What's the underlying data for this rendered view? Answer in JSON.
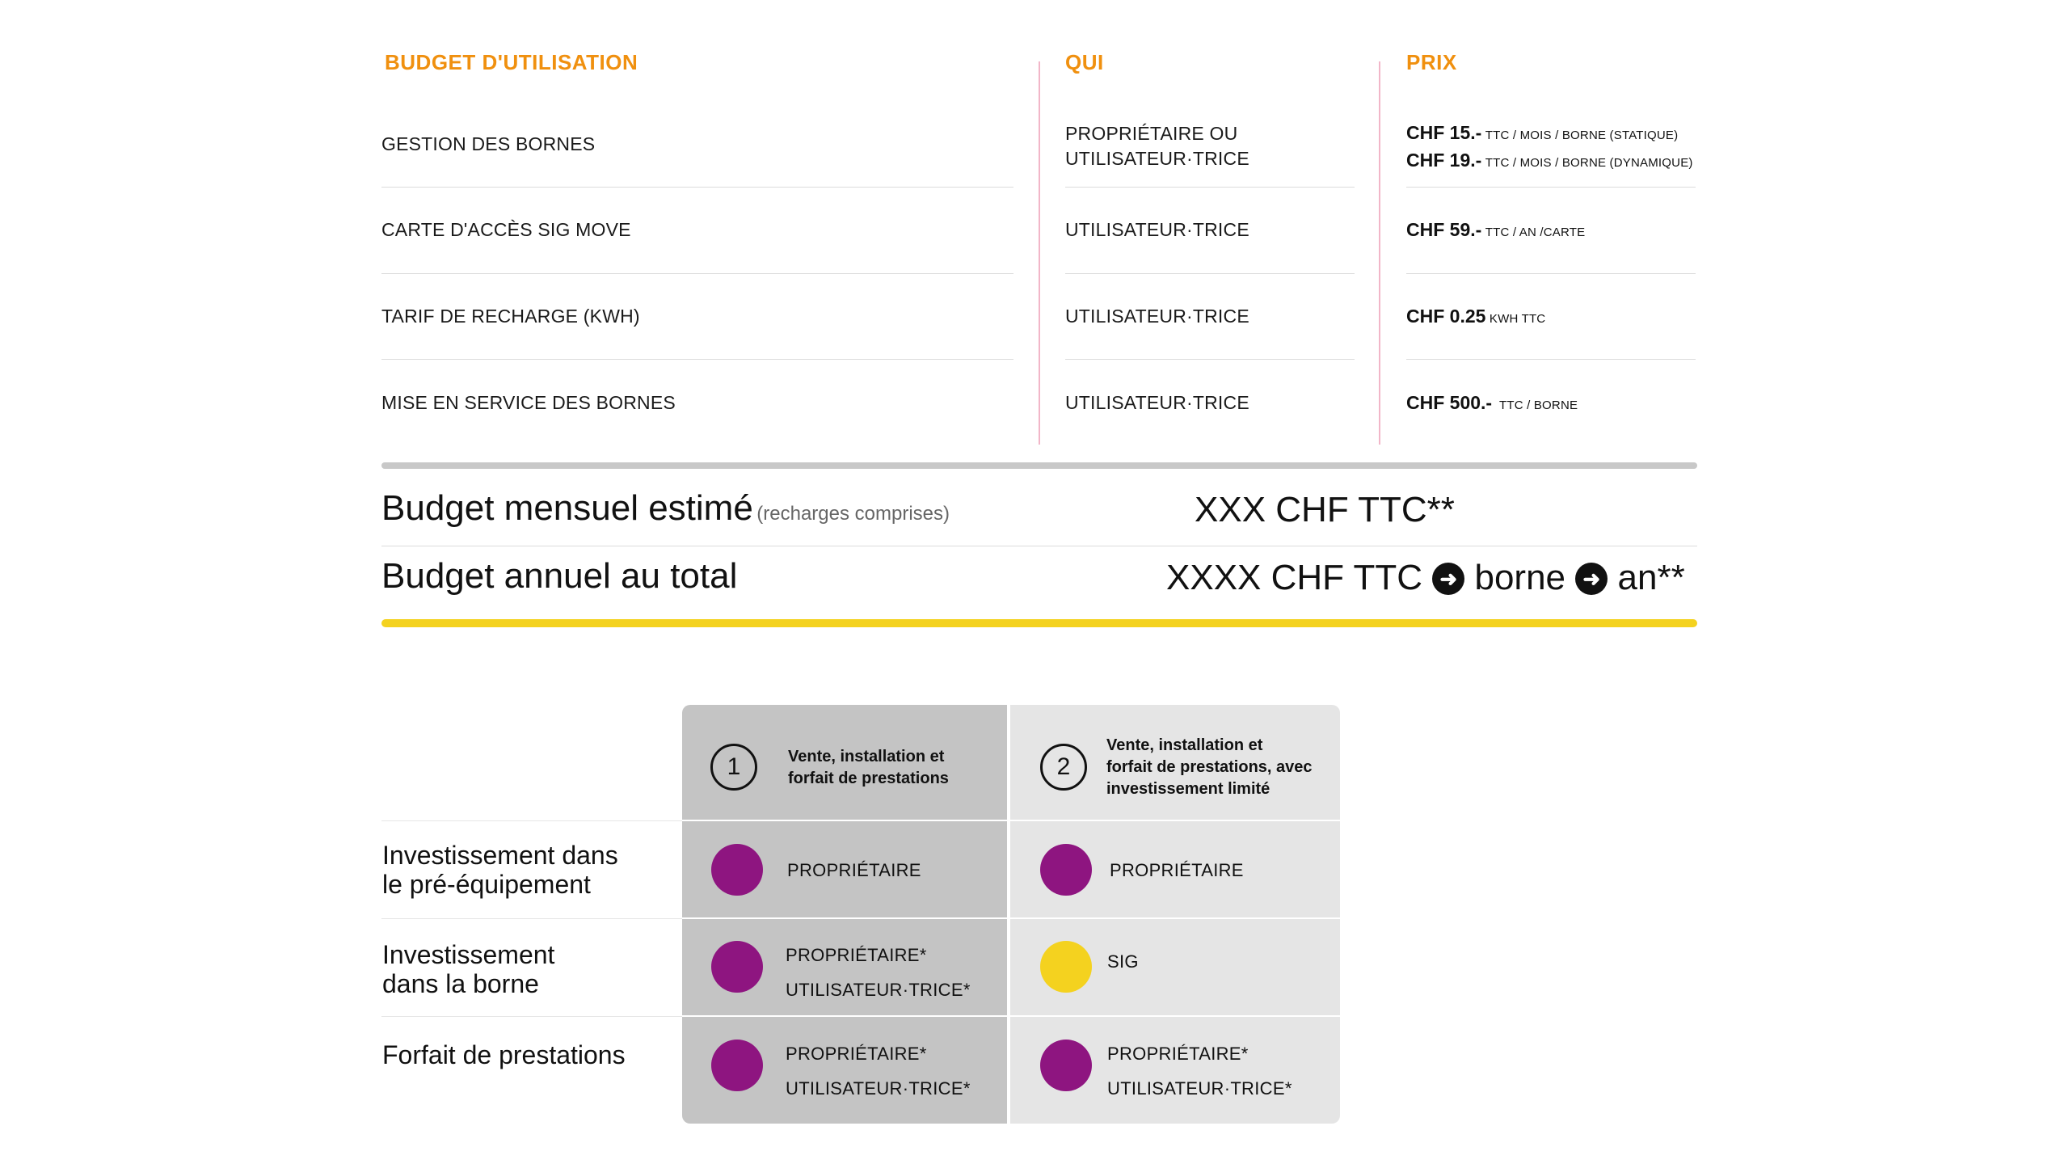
{
  "colors": {
    "accent": "#f0900f",
    "purple": "#8e1580",
    "yellow": "#f4d21f",
    "divider_pink": "#f2b6c8"
  },
  "budget": {
    "headers": {
      "item": "BUDGET D'UTILISATION",
      "who": "QUI",
      "price": "PRIX"
    },
    "rows": [
      {
        "item": "GESTION DES BORNES",
        "who": [
          "PROPRIÉTAIRE OU",
          "UTILISATEUR·TRICE"
        ],
        "price": [
          {
            "amount": "CHF 15.-",
            "unit": "TTC / MOIS / BORNE (STATIQUE)"
          },
          {
            "amount": "CHF 19.-",
            "unit": "TTC / MOIS / BORNE (DYNAMIQUE)"
          }
        ]
      },
      {
        "item": "CARTE D'ACCÈS SIG MOVE",
        "who": [
          "UTILISATEUR·TRICE"
        ],
        "price": [
          {
            "amount": "CHF 59.-",
            "unit": "TTC / AN /CARTE"
          }
        ]
      },
      {
        "item": "TARIF DE RECHARGE (KWH)",
        "who": [
          "UTILISATEUR·TRICE"
        ],
        "price": [
          {
            "amount": "CHF 0.25",
            "unit": "KWH TTC"
          }
        ]
      },
      {
        "item": "MISE EN SERVICE DES BORNES",
        "who": [
          "UTILISATEUR·TRICE"
        ],
        "price": [
          {
            "amount": "CHF 500.-",
            "unit": "TTC / BORNE"
          }
        ]
      }
    ]
  },
  "summary": {
    "monthly_label": "Budget mensuel estimé",
    "monthly_note": "(recharges comprises)",
    "monthly_value": "XXX CHF TTC**",
    "annual_label": "Budget annuel au total",
    "annual_value_part1": "XXXX CHF TTC",
    "annual_value_part2": "borne",
    "annual_value_part3": "an**",
    "arrow_icon": "arrow-right-circle-icon"
  },
  "options": {
    "columns": [
      {
        "number": "1",
        "title_lines": [
          "Vente, installation et",
          "forfait de prestations"
        ]
      },
      {
        "number": "2",
        "title_lines": [
          "Vente, installation et",
          "forfait de prestations, avec",
          "investissement limité"
        ]
      }
    ],
    "rows": [
      {
        "label_lines": [
          "Investissement dans",
          "le pré-équipement"
        ],
        "cells": [
          {
            "dot": "purple",
            "lines": [
              "PROPRIÉTAIRE"
            ]
          },
          {
            "dot": "purple",
            "lines": [
              "PROPRIÉTAIRE"
            ]
          }
        ]
      },
      {
        "label_lines": [
          "Investissement",
          "dans la borne"
        ],
        "cells": [
          {
            "dot": "purple",
            "lines": [
              "PROPRIÉTAIRE*",
              "UTILISATEUR·TRICE*"
            ]
          },
          {
            "dot": "yellow",
            "lines": [
              "SIG"
            ]
          }
        ]
      },
      {
        "label_lines": [
          "Forfait de prestations"
        ],
        "cells": [
          {
            "dot": "purple",
            "lines": [
              "PROPRIÉTAIRE*",
              "UTILISATEUR·TRICE*"
            ]
          },
          {
            "dot": "purple",
            "lines": [
              "PROPRIÉTAIRE*",
              "UTILISATEUR·TRICE*"
            ]
          }
        ]
      }
    ]
  }
}
